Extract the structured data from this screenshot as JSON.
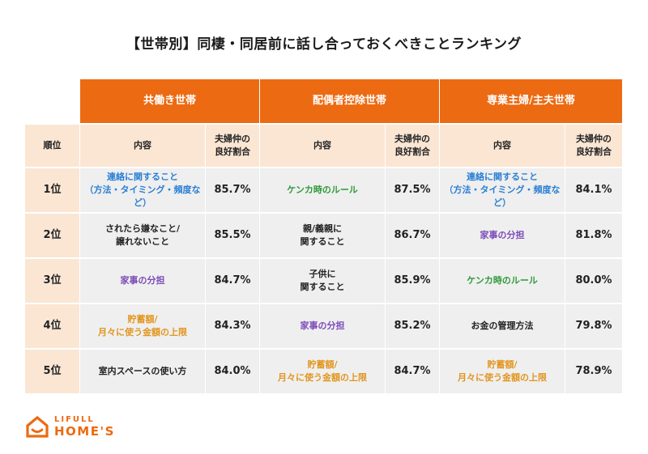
{
  "title": "【世帯別】同棲・同居前に話し合っておくべきことランキング",
  "groups": [
    "共働き世帯",
    "配偶者控除世帯",
    "専業主婦/主夫世帯"
  ],
  "headers": {
    "rank": "順位",
    "content": "内容",
    "rate": "夫婦仲の\n良好割合"
  },
  "rows": [
    {
      "rank": "1位",
      "items": [
        {
          "text": "連絡に関すること\n（方法・タイミング・頻度など）",
          "pct": "85.7%"
        },
        {
          "text": "ケンカ時のルール",
          "pct": "87.5%"
        },
        {
          "text": "連絡に関すること\n（方法・タイミング・頻度など）",
          "pct": "84.1%"
        }
      ]
    },
    {
      "rank": "2位",
      "items": [
        {
          "text": "されたら嫌なこと/\n譲れないこと",
          "pct": "85.5%"
        },
        {
          "text": "親/義親に\n関すること",
          "pct": "86.7%"
        },
        {
          "text": "家事の分担",
          "pct": "81.8%"
        }
      ]
    },
    {
      "rank": "3位",
      "items": [
        {
          "text": "家事の分担",
          "pct": "84.7%"
        },
        {
          "text": "子供に\n関すること",
          "pct": "85.9%"
        },
        {
          "text": "ケンカ時のルール",
          "pct": "80.0%"
        }
      ]
    },
    {
      "rank": "4位",
      "items": [
        {
          "text": "貯蓄額/\n月々に使う金額の上限",
          "pct": "84.3%"
        },
        {
          "text": "家事の分担",
          "pct": "85.2%"
        },
        {
          "text": "お金の管理方法",
          "pct": "79.8%"
        }
      ]
    },
    {
      "rank": "5位",
      "items": [
        {
          "text": "室内スペースの使い方",
          "pct": "84.0%"
        },
        {
          "text": "貯蓄額/\n月々に使う金額の上限",
          "pct": "84.7%"
        },
        {
          "text": "貯蓄額/\n月々に使う金額の上限",
          "pct": "78.9%"
        }
      ]
    }
  ],
  "category_colors": {
    "連絡": "#2a7fd4",
    "ケンカ": "#2f9a3a",
    "家事": "#7b4bb8",
    "貯蓄": "#e2951f",
    "other": "#222222"
  },
  "brand": {
    "top": "LIFULL",
    "bottom": "HOME'S",
    "color": "#ec6a12"
  }
}
